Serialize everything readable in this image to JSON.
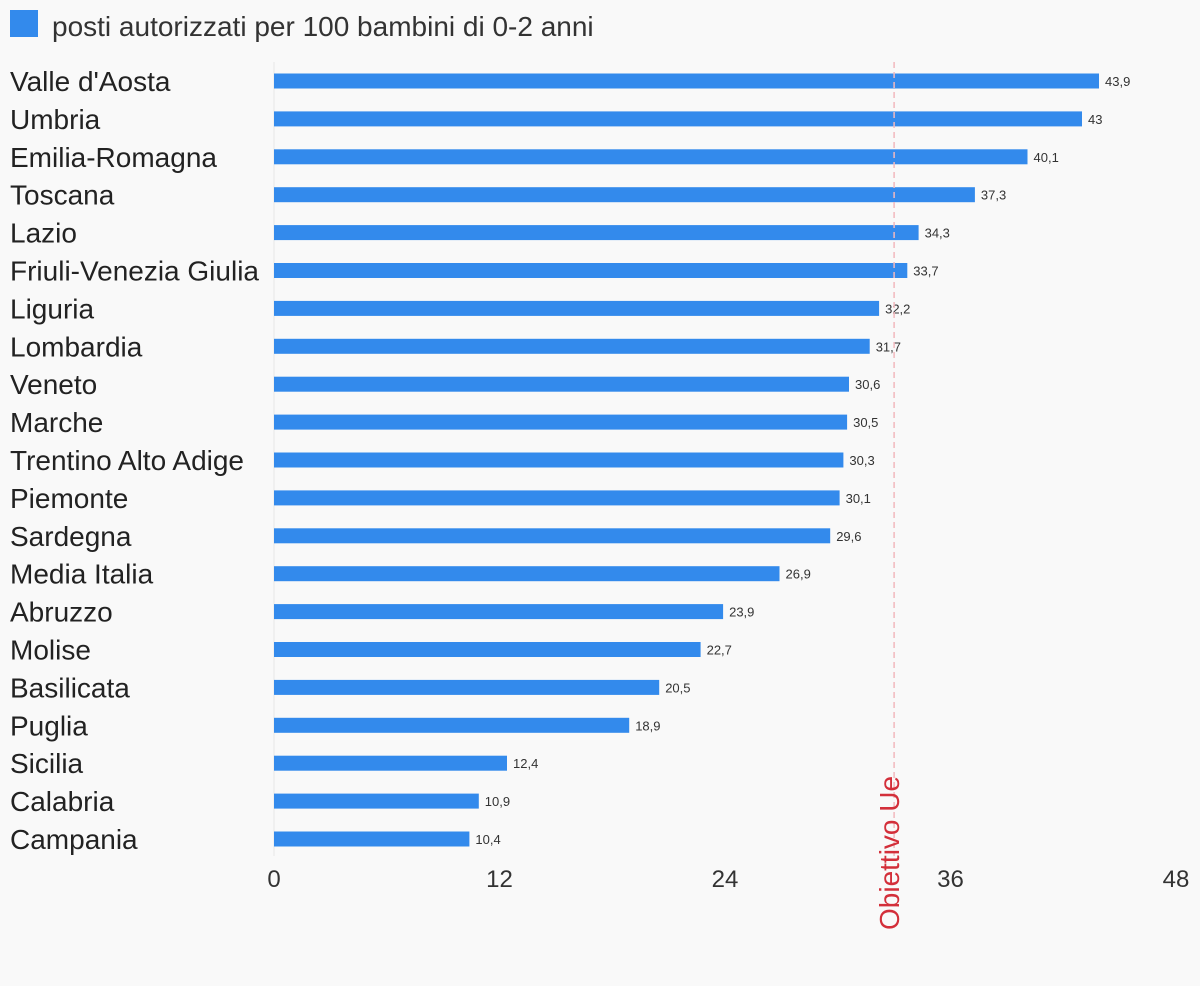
{
  "chart_data": {
    "type": "bar",
    "orientation": "horizontal",
    "legend": [
      {
        "name": "posti autorizzati per 100 bambini di 0-2 anni",
        "color": "#338aec"
      }
    ],
    "categories": [
      "Valle d'Aosta",
      "Umbria",
      "Emilia-Romagna",
      "Toscana",
      "Lazio",
      "Friuli-Venezia Giulia",
      "Liguria",
      "Lombardia",
      "Veneto",
      "Marche",
      "Trentino Alto Adige",
      "Piemonte",
      "Sardegna",
      "Media Italia",
      "Abruzzo",
      "Molise",
      "Basilicata",
      "Puglia",
      "Sicilia",
      "Calabria",
      "Campania"
    ],
    "series": [
      {
        "name": "posti autorizzati per 100 bambini di 0-2 anni",
        "color": "#338aec",
        "values": [
          43.9,
          43,
          40.1,
          37.3,
          34.3,
          33.7,
          32.2,
          31.7,
          30.6,
          30.5,
          30.3,
          30.1,
          29.6,
          26.9,
          23.9,
          22.7,
          20.5,
          18.9,
          12.4,
          10.9,
          10.4
        ],
        "value_labels": [
          "43,9",
          "43",
          "40,1",
          "37,3",
          "34,3",
          "33,7",
          "32,2",
          "31,7",
          "30,6",
          "30,5",
          "30,3",
          "30,1",
          "29,6",
          "26,9",
          "23,9",
          "22,7",
          "20,5",
          "18,9",
          "12,4",
          "10,9",
          "10,4"
        ]
      }
    ],
    "xlim": [
      0,
      48
    ],
    "xticks": [
      0,
      12,
      24,
      36,
      48
    ],
    "xtick_labels": [
      "0",
      "12",
      "24",
      "36",
      "48"
    ],
    "reference_line": {
      "value": 33,
      "label": "Obiettivo Ue",
      "color": "#d32f3a"
    },
    "legend_position": "top-left",
    "grid": false
  }
}
